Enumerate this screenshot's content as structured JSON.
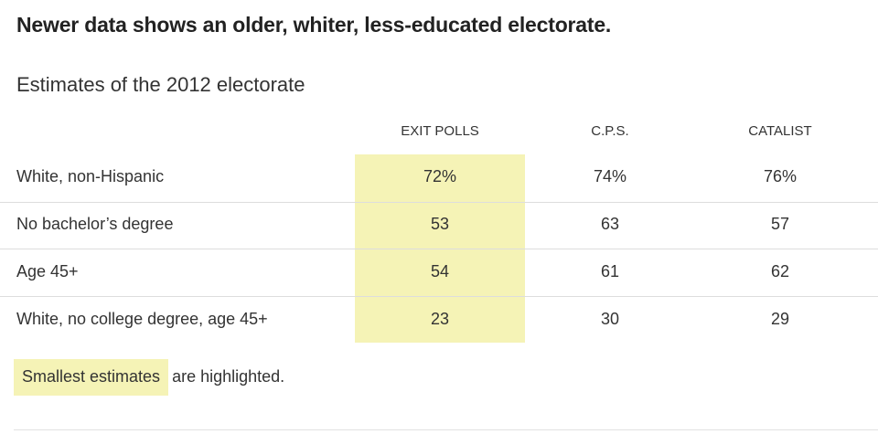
{
  "headline": "Newer data shows an older, whiter, less-educated electorate.",
  "subtitle": "Estimates of the 2012 electorate",
  "chart_data": {
    "type": "table",
    "columns": [
      "EXIT POLLS",
      "C.P.S.",
      "CATALIST"
    ],
    "rows": [
      {
        "label": "White, non-Hispanic",
        "values": [
          "72%",
          "74%",
          "76%"
        ]
      },
      {
        "label": "No bachelor’s degree",
        "values": [
          "53",
          "63",
          "57"
        ]
      },
      {
        "label": "Age 45+",
        "values": [
          "54",
          "61",
          "62"
        ]
      },
      {
        "label": "White, no college degree, age 45+",
        "values": [
          "23",
          "30",
          "29"
        ]
      }
    ],
    "highlighted_column": "EXIT POLLS",
    "highlight_color": "#f5f3b6"
  },
  "legend": {
    "highlight_text": "Smallest estimates",
    "rest_text": "are highlighted."
  },
  "colors": {
    "highlight": "#f5f3b6",
    "text": "#333333",
    "rule": "#dddddd"
  }
}
